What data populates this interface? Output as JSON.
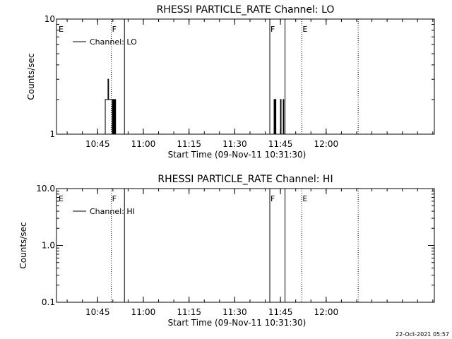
{
  "footer": {
    "timestamp": "22-Oct-2021 05:57"
  },
  "chart_data": [
    {
      "type": "line",
      "title": "RHESSI PARTICLE_RATE Channel: LO",
      "xlabel": "Start Time (09-Nov-11 10:31:30)",
      "ylabel": "Counts/sec",
      "x_unit": "minutes after 10:31:30",
      "xlim": [
        0,
        124
      ],
      "ylim": [
        1,
        10
      ],
      "yscale": "log",
      "x_tick_labels": [
        "10:45",
        "11:00",
        "11:15",
        "11:30",
        "11:45",
        "12:00"
      ],
      "x_tick_values": [
        13.5,
        28.5,
        43.5,
        58.5,
        73.5,
        88.5
      ],
      "y_tick_labels": [
        "1",
        "10"
      ],
      "y_tick_values": [
        1,
        10
      ],
      "legend": {
        "label": "Channel: LO",
        "placement": "top-left"
      },
      "markers": [
        {
          "label": "E",
          "x": 0,
          "style": "none"
        },
        {
          "label": "F",
          "x": 18,
          "style": "dotted"
        },
        {
          "label": "",
          "x": 22.3,
          "style": "solid"
        },
        {
          "label": "F",
          "x": 70,
          "style": "solid"
        },
        {
          "label": "",
          "x": 75,
          "style": "solid"
        },
        {
          "label": "E",
          "x": 80.5,
          "style": "dotted"
        },
        {
          "label": "",
          "x": 99,
          "style": "dotted"
        }
      ],
      "series": [
        {
          "x": [
            15.8,
            16.0,
            16.6,
            16.9,
            17.1,
            17.3,
            17.7,
            18.1,
            18.3,
            18.5,
            18.6,
            18.8,
            19.0,
            19.2,
            19.4,
            19.6,
            71.2,
            71.4,
            71.6,
            71.8,
            72.0,
            73.3,
            73.5,
            73.7,
            74.0,
            74.4,
            74.6,
            74.8
          ],
          "y": [
            1,
            2,
            2,
            3,
            2,
            2,
            2,
            2,
            1,
            2,
            1,
            2,
            1,
            2,
            1,
            1,
            1,
            2,
            1,
            2,
            1,
            1,
            2,
            1,
            1,
            2,
            1,
            1
          ]
        }
      ]
    },
    {
      "type": "line",
      "title": "RHESSI PARTICLE_RATE Channel: HI",
      "xlabel": "Start Time (09-Nov-11 10:31:30)",
      "ylabel": "Counts/sec",
      "x_unit": "minutes after 10:31:30",
      "xlim": [
        0,
        124
      ],
      "ylim": [
        0.1,
        10
      ],
      "yscale": "log",
      "x_tick_labels": [
        "10:45",
        "11:00",
        "11:15",
        "11:30",
        "11:45",
        "12:00"
      ],
      "x_tick_values": [
        13.5,
        28.5,
        43.5,
        58.5,
        73.5,
        88.5
      ],
      "y_tick_labels": [
        "0.1",
        "1.0",
        "10.0"
      ],
      "y_tick_values": [
        0.1,
        1,
        10
      ],
      "legend": {
        "label": "Channel: HI",
        "placement": "top-left"
      },
      "markers": [
        {
          "label": "E",
          "x": 0,
          "style": "none"
        },
        {
          "label": "F",
          "x": 18,
          "style": "dotted"
        },
        {
          "label": "",
          "x": 22.3,
          "style": "solid"
        },
        {
          "label": "F",
          "x": 70,
          "style": "solid"
        },
        {
          "label": "",
          "x": 75,
          "style": "solid"
        },
        {
          "label": "E",
          "x": 80.5,
          "style": "dotted"
        },
        {
          "label": "",
          "x": 99,
          "style": "dotted"
        }
      ],
      "series": []
    }
  ]
}
